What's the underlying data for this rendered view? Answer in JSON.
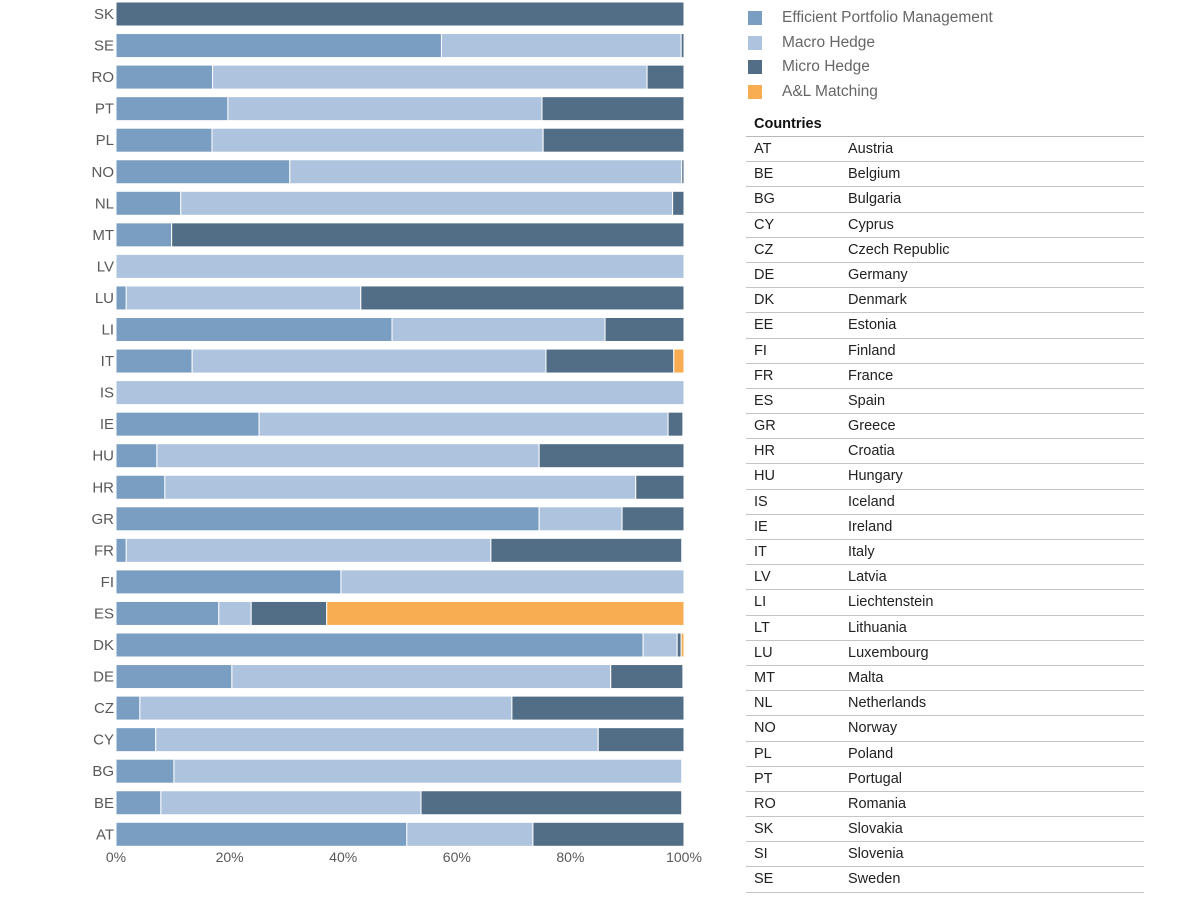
{
  "chart_data": {
    "type": "bar",
    "orientation": "horizontal",
    "stacked": "percent",
    "title": "",
    "xlabel": "",
    "ylabel": "",
    "xlim": [
      0,
      100
    ],
    "x_ticks": [
      "0%",
      "20%",
      "40%",
      "60%",
      "80%",
      "100%"
    ],
    "grid": false,
    "legend_position": "top-right",
    "categories": [
      "SK",
      "SE",
      "RO",
      "PT",
      "PL",
      "NO",
      "NL",
      "MT",
      "LV",
      "LU",
      "LI",
      "IT",
      "IS",
      "IE",
      "HU",
      "HR",
      "GR",
      "FR",
      "FI",
      "ES",
      "DK",
      "DE",
      "CZ",
      "CY",
      "BG",
      "BE",
      "AT"
    ],
    "series": [
      {
        "name": "Efficient Portfolio Management",
        "color": "#7a9ec2",
        "values": [
          0,
          57.3,
          17.0,
          19.7,
          16.9,
          30.6,
          11.4,
          9.8,
          0,
          1.8,
          48.6,
          13.4,
          0,
          25.2,
          7.2,
          8.6,
          74.5,
          1.8,
          39.6,
          18.1,
          92.8,
          20.4,
          4.2,
          7.0,
          10.2,
          7.9,
          51.2
        ]
      },
      {
        "name": "Macro Hedge",
        "color": "#adc3de",
        "values": [
          0,
          42.2,
          76.5,
          55.3,
          58.3,
          69.0,
          86.6,
          0,
          100,
          41.3,
          37.5,
          62.3,
          100,
          72.0,
          67.3,
          82.9,
          14.6,
          64.2,
          60.4,
          5.7,
          6.0,
          66.7,
          65.5,
          77.9,
          89.4,
          45.8,
          22.2
        ]
      },
      {
        "name": "Micro Hedge",
        "color": "#526e87",
        "values": [
          100,
          0.5,
          6.5,
          25.0,
          24.8,
          0.4,
          2.0,
          90.2,
          0,
          56.9,
          13.9,
          22.5,
          0,
          2.6,
          25.5,
          8.5,
          10.9,
          33.6,
          0,
          13.3,
          0.7,
          12.7,
          30.3,
          15.1,
          0,
          45.9,
          26.6
        ]
      },
      {
        "name": "A&L Matching",
        "color": "#f9ad53",
        "values": [
          0,
          0,
          0,
          0,
          0,
          0,
          0,
          0,
          0,
          0,
          0,
          1.8,
          0,
          0,
          0,
          0,
          0,
          0,
          0,
          62.9,
          0.5,
          0,
          0,
          0,
          0,
          0,
          0
        ]
      }
    ]
  },
  "legend": {
    "items": [
      {
        "label": "Efficient Portfolio Management",
        "color": "#7a9ec2"
      },
      {
        "label": "Macro Hedge",
        "color": "#adc3de"
      },
      {
        "label": "Micro Hedge",
        "color": "#526e87"
      },
      {
        "label": "A&L Matching",
        "color": "#f9ad53"
      }
    ]
  },
  "countries": {
    "title": "Countries",
    "rows": [
      {
        "code": "AT",
        "name": "Austria"
      },
      {
        "code": "BE",
        "name": "Belgium"
      },
      {
        "code": "BG",
        "name": "Bulgaria"
      },
      {
        "code": "CY",
        "name": "Cyprus"
      },
      {
        "code": "CZ",
        "name": "Czech Republic"
      },
      {
        "code": "DE",
        "name": "Germany"
      },
      {
        "code": "DK",
        "name": "Denmark"
      },
      {
        "code": "EE",
        "name": "Estonia"
      },
      {
        "code": "FI",
        "name": "Finland"
      },
      {
        "code": "FR",
        "name": "France"
      },
      {
        "code": "ES",
        "name": "Spain"
      },
      {
        "code": "GR",
        "name": "Greece"
      },
      {
        "code": "HR",
        "name": "Croatia"
      },
      {
        "code": "HU",
        "name": "Hungary"
      },
      {
        "code": "IS",
        "name": "Iceland"
      },
      {
        "code": "IE",
        "name": "Ireland"
      },
      {
        "code": "IT",
        "name": "Italy"
      },
      {
        "code": "LV",
        "name": "Latvia"
      },
      {
        "code": "LI",
        "name": "Liechtenstein"
      },
      {
        "code": "LT",
        "name": "Lithuania"
      },
      {
        "code": "LU",
        "name": "Luxembourg"
      },
      {
        "code": "MT",
        "name": "Malta"
      },
      {
        "code": "NL",
        "name": "Netherlands"
      },
      {
        "code": "NO",
        "name": "Norway"
      },
      {
        "code": "PL",
        "name": "Poland"
      },
      {
        "code": "PT",
        "name": "Portugal"
      },
      {
        "code": "RO",
        "name": "Romania"
      },
      {
        "code": "SK",
        "name": "Slovakia"
      },
      {
        "code": "SI",
        "name": "Slovenia"
      },
      {
        "code": "SE",
        "name": "Sweden"
      }
    ]
  }
}
